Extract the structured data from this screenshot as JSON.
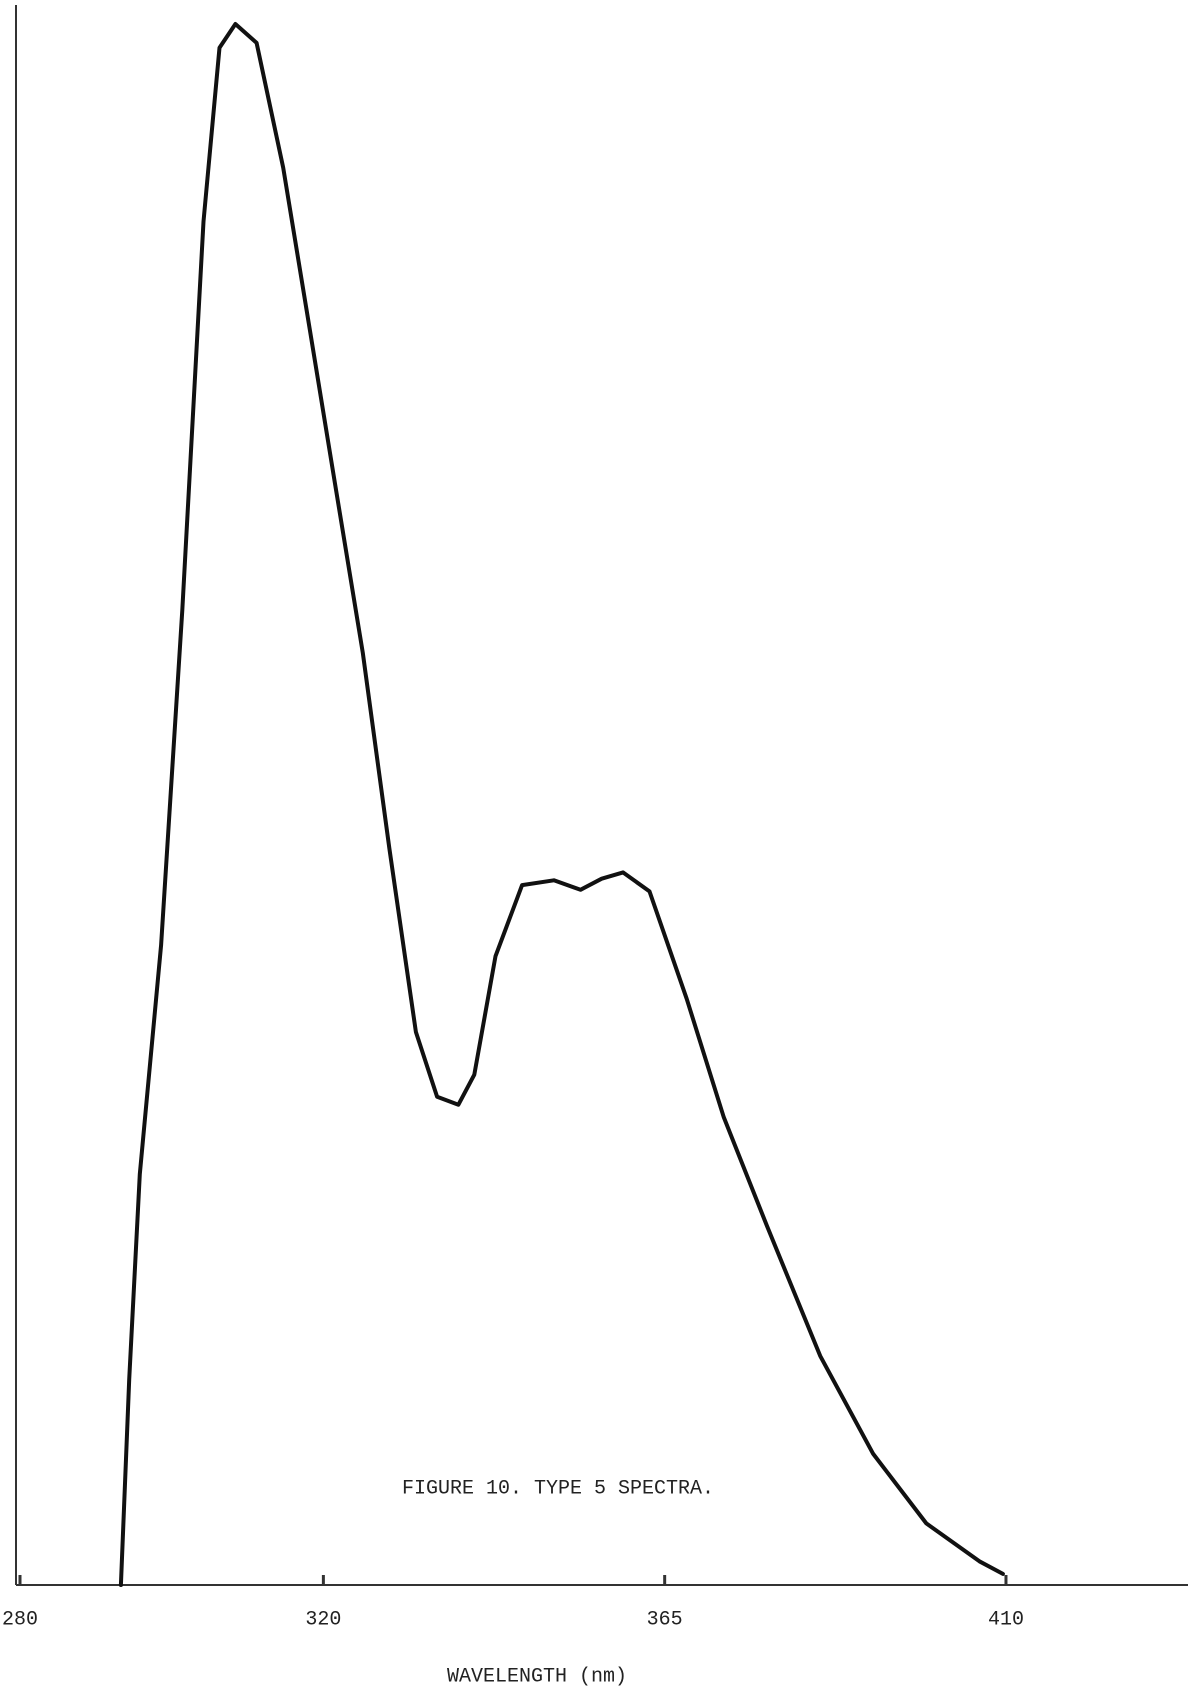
{
  "chart_data": {
    "type": "line",
    "title": "FIGURE 10.  TYPE 5 SPECTRA.",
    "x_label": "WAVELENGTH (nm)",
    "x": [
      293.3,
      294.4,
      295.8,
      298.6,
      301.4,
      304.2,
      306.3,
      308.4,
      311.2,
      314.7,
      318.2,
      321.7,
      325.2,
      328.7,
      332.2,
      335.0,
      337.8,
      339.9,
      342.7,
      346.2,
      350.4,
      353.9,
      356.7,
      359.5,
      363.0,
      367.9,
      372.8,
      378.5,
      385.5,
      392.5,
      399.5,
      406.5,
      409.6
    ],
    "values": [
      0,
      13,
      26,
      40.5,
      61.7,
      86.3,
      97.3,
      98.8,
      97.6,
      89.7,
      79.5,
      69.2,
      59.0,
      46.6,
      35.0,
      30.9,
      30.4,
      32.3,
      39.8,
      44.3,
      44.6,
      44.0,
      44.7,
      45.1,
      43.9,
      37.1,
      29.6,
      22.7,
      14.5,
      8.3,
      3.9,
      1.5,
      0.7
    ],
    "color": "#111111",
    "xlim": [
      280,
      434
    ],
    "xticks": [
      280,
      320,
      365,
      410
    ],
    "ylim": [
      0,
      100
    ]
  }
}
